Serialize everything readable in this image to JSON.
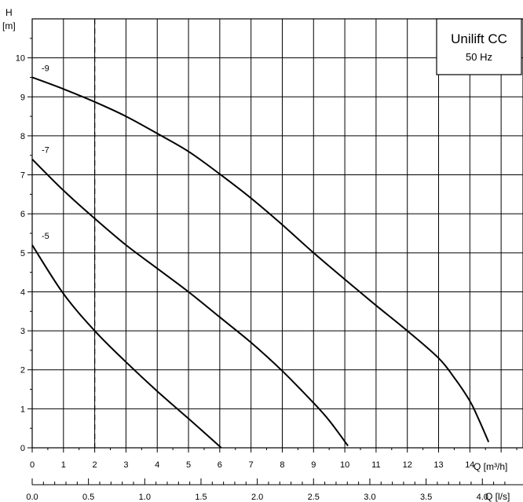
{
  "chart_data": {
    "type": "line",
    "title": "Unilift CC",
    "subtitle": "50 Hz",
    "ylabel_symbol": "H",
    "ylabel_unit": "[m]",
    "xlabel": "Q [m³/h]",
    "x2label": "Q [l/s]",
    "xlim": [
      0,
      15.7
    ],
    "ylim": [
      0,
      11
    ],
    "x_ticks": [
      0,
      1,
      2,
      3,
      4,
      5,
      6,
      7,
      8,
      9,
      10,
      11,
      12,
      13,
      14
    ],
    "y_ticks": [
      0,
      1,
      2,
      3,
      4,
      5,
      6,
      7,
      8,
      9,
      10
    ],
    "x2_ticks": [
      "0.0",
      "0.5",
      "1.0",
      "1.5",
      "2.0",
      "2.5",
      "3.0",
      "3.5",
      "4.0"
    ],
    "grid": true,
    "reference_x": 2,
    "series": [
      {
        "name": "-9",
        "x": [
          0,
          1,
          2,
          3,
          4,
          5,
          6,
          7,
          8,
          9,
          10,
          11,
          12,
          13,
          13.5,
          14,
          14.3,
          14.6
        ],
        "y": [
          9.5,
          9.2,
          8.87,
          8.5,
          8.06,
          7.6,
          7.02,
          6.4,
          5.72,
          5.0,
          4.32,
          3.65,
          3.0,
          2.3,
          1.8,
          1.2,
          0.7,
          0.15
        ]
      },
      {
        "name": "-7",
        "x": [
          0,
          1,
          2,
          3,
          4,
          5,
          6,
          7,
          8,
          9,
          9.5,
          10.1
        ],
        "y": [
          7.4,
          6.6,
          5.88,
          5.2,
          4.6,
          4.0,
          3.35,
          2.7,
          1.97,
          1.15,
          0.7,
          0.05
        ]
      },
      {
        "name": "-5",
        "x": [
          0,
          1,
          2,
          3,
          4,
          5,
          6.05
        ],
        "y": [
          5.2,
          3.95,
          3.0,
          2.2,
          1.45,
          0.75,
          0.0
        ]
      }
    ]
  }
}
